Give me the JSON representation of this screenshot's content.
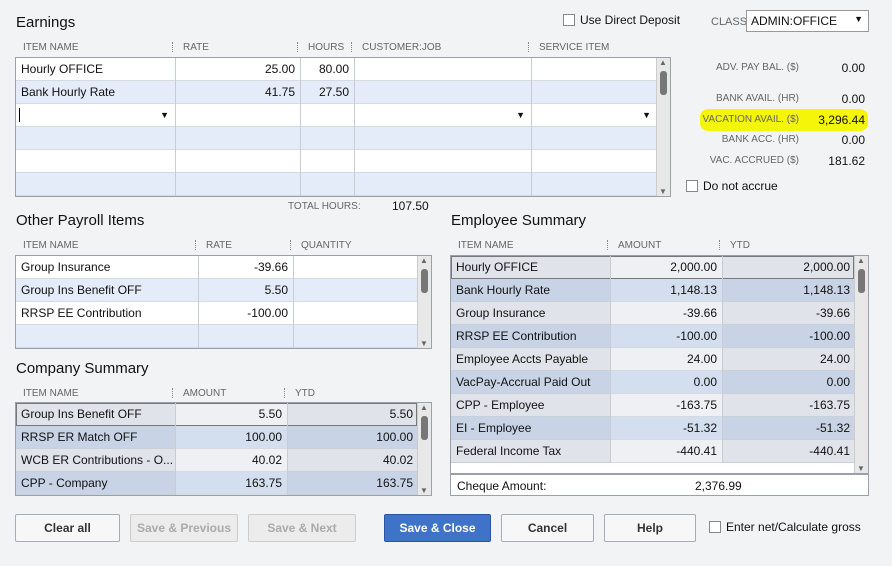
{
  "earnings": {
    "title": "Earnings",
    "columns": [
      "ITEM NAME",
      "RATE",
      "HOURS",
      "CUSTOMER:JOB",
      "SERVICE ITEM"
    ],
    "rows": [
      [
        "Hourly OFFICE",
        "25.00",
        "80.00"
      ],
      [
        "Bank Hourly Rate",
        "41.75",
        "27.50"
      ]
    ],
    "total_label": "TOTAL HOURS:",
    "total": "107.50"
  },
  "options": {
    "direct_deposit": "Use Direct Deposit",
    "class_label": "CLASS",
    "class_value": "ADMIN:OFFICE"
  },
  "balances": [
    {
      "label": "ADV. PAY BAL. ($)",
      "value": "0.00"
    },
    {
      "label": "BANK AVAIL. (HR)",
      "value": "0.00"
    },
    {
      "label": "VACATION AVAIL. ($)",
      "value": "3,296.44"
    },
    {
      "label": "BANK ACC. (HR)",
      "value": "0.00"
    },
    {
      "label": "VAC. ACCRUED ($)",
      "value": "181.62"
    }
  ],
  "do_not_accrue": "Do not accrue",
  "other_payroll": {
    "title": "Other Payroll Items",
    "columns": [
      "ITEM NAME",
      "RATE",
      "QUANTITY"
    ],
    "rows": [
      [
        "Group Insurance",
        "-39.66"
      ],
      [
        "Group Ins Benefit OFF",
        "5.50"
      ],
      [
        "RRSP EE Contribution",
        "-100.00"
      ]
    ]
  },
  "company_summary": {
    "title": "Company Summary",
    "columns": [
      "ITEM NAME",
      "AMOUNT",
      "YTD"
    ],
    "rows": [
      [
        "Group Ins Benefit OFF",
        "5.50",
        "5.50"
      ],
      [
        "RRSP ER Match OFF",
        "100.00",
        "100.00"
      ],
      [
        "WCB ER Contributions - O...",
        "40.02",
        "40.02"
      ],
      [
        "CPP - Company",
        "163.75",
        "163.75"
      ]
    ]
  },
  "employee_summary": {
    "title": "Employee Summary",
    "columns": [
      "ITEM NAME",
      "AMOUNT",
      "YTD"
    ],
    "rows": [
      [
        "Hourly OFFICE",
        "2,000.00",
        "2,000.00"
      ],
      [
        "Bank Hourly Rate",
        "1,148.13",
        "1,148.13"
      ],
      [
        "Group Insurance",
        "-39.66",
        "-39.66"
      ],
      [
        "RRSP EE Contribution",
        "-100.00",
        "-100.00"
      ],
      [
        "Employee Accts Payable",
        "24.00",
        "24.00"
      ],
      [
        "VacPay-Accrual Paid Out",
        "0.00",
        "0.00"
      ],
      [
        "CPP - Employee",
        "-163.75",
        "-163.75"
      ],
      [
        "EI - Employee",
        "-51.32",
        "-51.32"
      ],
      [
        "Federal Income Tax",
        "-440.41",
        "-440.41"
      ]
    ],
    "cheque_label": "Cheque Amount:",
    "cheque": "2,376.99"
  },
  "buttons": [
    "Clear all",
    "Save & Previous",
    "Save & Next",
    "Save & Close",
    "Cancel",
    "Help"
  ],
  "enter_net": "Enter net/Calculate gross"
}
